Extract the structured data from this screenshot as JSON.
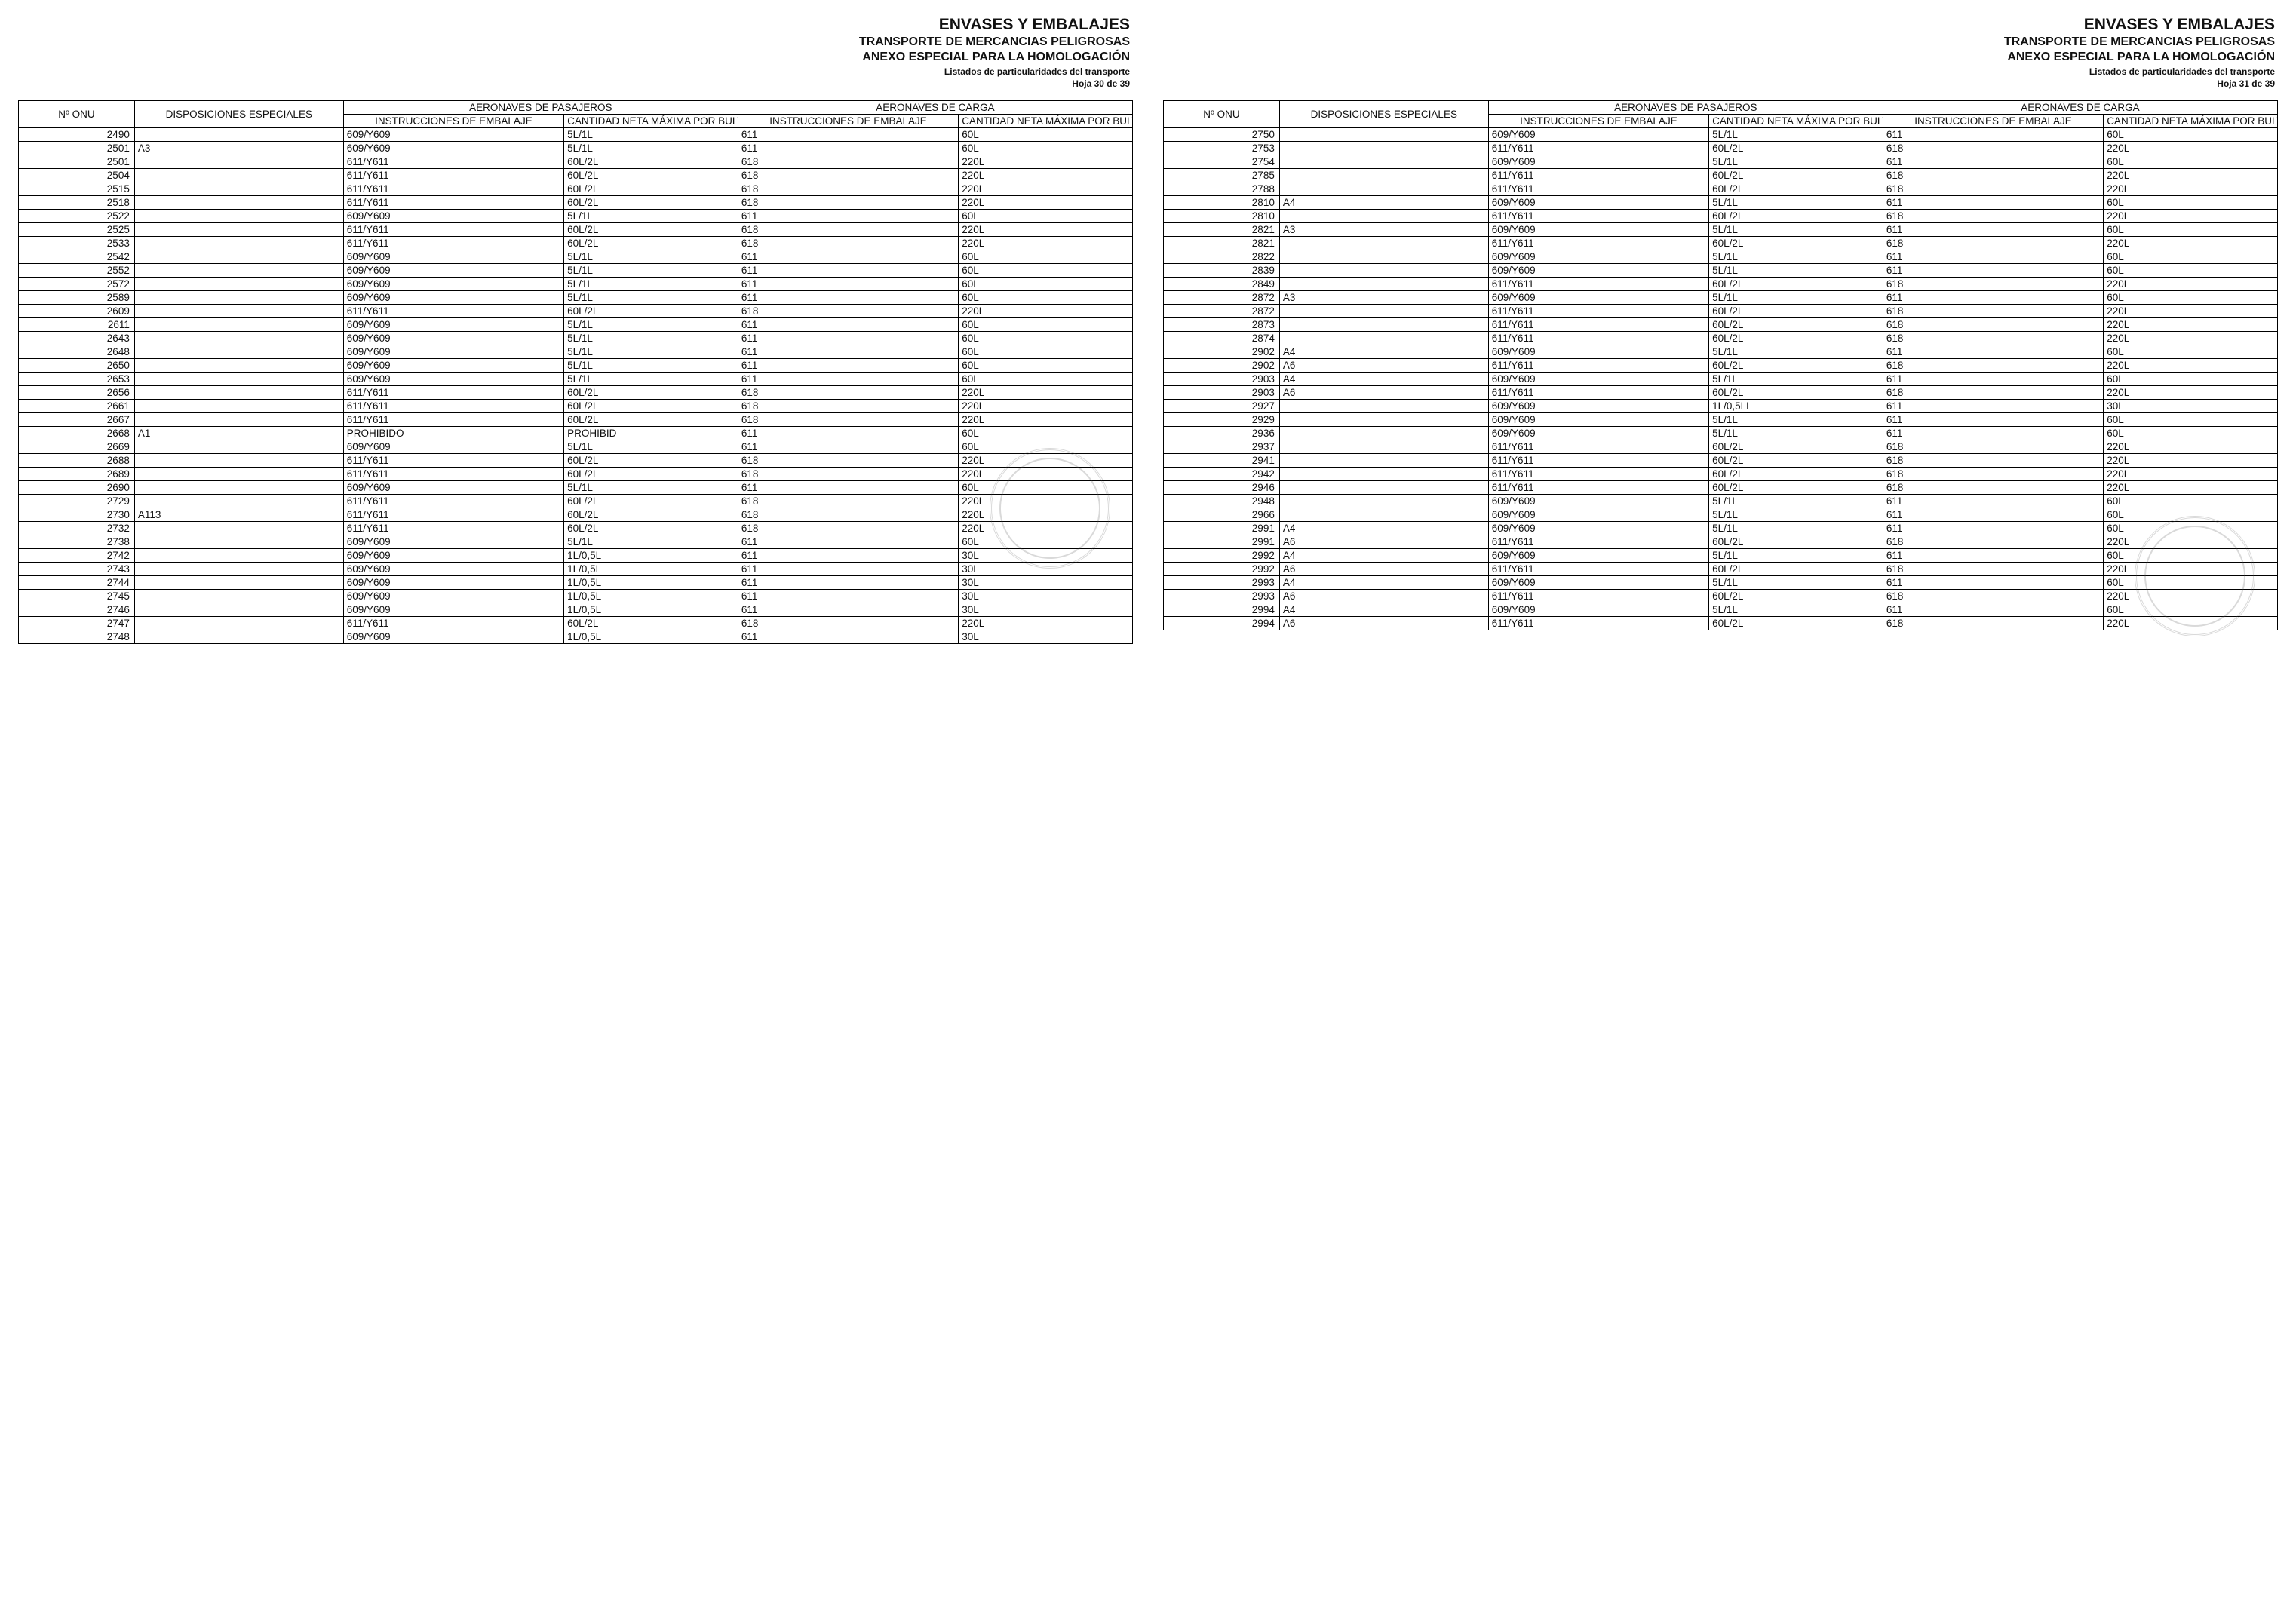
{
  "header": {
    "title": "ENVASES Y EMBALAJES",
    "subtitle1": "TRANSPORTE DE MERCANCIAS PELIGROSAS",
    "subtitle2": "ANEXO ESPECIAL PARA LA HOMOLOGACIÓN",
    "subtitle3": "Listados de particularidades del transporte",
    "page_left": "Hoja 30 de 39",
    "page_right": "Hoja 31 de 39"
  },
  "table_headers": {
    "onu": "Nº ONU",
    "disp": "DISPOSICIONES ESPECIALES",
    "pax_group": "AERONAVES DE PASAJEROS",
    "cargo_group": "AERONAVES DE CARGA",
    "instr": "INSTRUCCIONES DE EMBALAJE",
    "qty": "CANTIDAD NETA MÁXIMA POR BULTO"
  },
  "rows_left": [
    [
      "2490",
      "",
      "609/Y609",
      "5L/1L",
      "611",
      "60L"
    ],
    [
      "2501",
      "A3",
      "609/Y609",
      "5L/1L",
      "611",
      "60L"
    ],
    [
      "2501",
      "",
      "611/Y611",
      "60L/2L",
      "618",
      "220L"
    ],
    [
      "2504",
      "",
      "611/Y611",
      "60L/2L",
      "618",
      "220L"
    ],
    [
      "2515",
      "",
      "611/Y611",
      "60L/2L",
      "618",
      "220L"
    ],
    [
      "2518",
      "",
      "611/Y611",
      "60L/2L",
      "618",
      "220L"
    ],
    [
      "2522",
      "",
      "609/Y609",
      "5L/1L",
      "611",
      "60L"
    ],
    [
      "2525",
      "",
      "611/Y611",
      "60L/2L",
      "618",
      "220L"
    ],
    [
      "2533",
      "",
      "611/Y611",
      "60L/2L",
      "618",
      "220L"
    ],
    [
      "2542",
      "",
      "609/Y609",
      "5L/1L",
      "611",
      "60L"
    ],
    [
      "2552",
      "",
      "609/Y609",
      "5L/1L",
      "611",
      "60L"
    ],
    [
      "2572",
      "",
      "609/Y609",
      "5L/1L",
      "611",
      "60L"
    ],
    [
      "2589",
      "",
      "609/Y609",
      "5L/1L",
      "611",
      "60L"
    ],
    [
      "2609",
      "",
      "611/Y611",
      "60L/2L",
      "618",
      "220L"
    ],
    [
      "2611",
      "",
      "609/Y609",
      "5L/1L",
      "611",
      "60L"
    ],
    [
      "2643",
      "",
      "609/Y609",
      "5L/1L",
      "611",
      "60L"
    ],
    [
      "2648",
      "",
      "609/Y609",
      "5L/1L",
      "611",
      "60L"
    ],
    [
      "2650",
      "",
      "609/Y609",
      "5L/1L",
      "611",
      "60L"
    ],
    [
      "2653",
      "",
      "609/Y609",
      "5L/1L",
      "611",
      "60L"
    ],
    [
      "2656",
      "",
      "611/Y611",
      "60L/2L",
      "618",
      "220L"
    ],
    [
      "2661",
      "",
      "611/Y611",
      "60L/2L",
      "618",
      "220L"
    ],
    [
      "2667",
      "",
      "611/Y611",
      "60L/2L",
      "618",
      "220L"
    ],
    [
      "2668",
      "A1",
      "PROHIBIDO",
      "PROHIBID",
      "611",
      "60L"
    ],
    [
      "2669",
      "",
      "609/Y609",
      "5L/1L",
      "611",
      "60L"
    ],
    [
      "2688",
      "",
      "611/Y611",
      "60L/2L",
      "618",
      "220L"
    ],
    [
      "2689",
      "",
      "611/Y611",
      "60L/2L",
      "618",
      "220L"
    ],
    [
      "2690",
      "",
      "609/Y609",
      "5L/1L",
      "611",
      "60L"
    ],
    [
      "2729",
      "",
      "611/Y611",
      "60L/2L",
      "618",
      "220L"
    ],
    [
      "2730",
      "A113",
      "611/Y611",
      "60L/2L",
      "618",
      "220L"
    ],
    [
      "2732",
      "",
      "611/Y611",
      "60L/2L",
      "618",
      "220L"
    ],
    [
      "2738",
      "",
      "609/Y609",
      "5L/1L",
      "611",
      "60L"
    ],
    [
      "2742",
      "",
      "609/Y609",
      "1L/0,5L",
      "611",
      "30L"
    ],
    [
      "2743",
      "",
      "609/Y609",
      "1L/0,5L",
      "611",
      "30L"
    ],
    [
      "2744",
      "",
      "609/Y609",
      "1L/0,5L",
      "611",
      "30L"
    ],
    [
      "2745",
      "",
      "609/Y609",
      "1L/0,5L",
      "611",
      "30L"
    ],
    [
      "2746",
      "",
      "609/Y609",
      "1L/0,5L",
      "611",
      "30L"
    ],
    [
      "2747",
      "",
      "611/Y611",
      "60L/2L",
      "618",
      "220L"
    ],
    [
      "2748",
      "",
      "609/Y609",
      "1L/0,5L",
      "611",
      "30L"
    ]
  ],
  "rows_right": [
    [
      "2750",
      "",
      "609/Y609",
      "5L/1L",
      "611",
      "60L"
    ],
    [
      "2753",
      "",
      "611/Y611",
      "60L/2L",
      "618",
      "220L"
    ],
    [
      "2754",
      "",
      "609/Y609",
      "5L/1L",
      "611",
      "60L"
    ],
    [
      "2785",
      "",
      "611/Y611",
      "60L/2L",
      "618",
      "220L"
    ],
    [
      "2788",
      "",
      "611/Y611",
      "60L/2L",
      "618",
      "220L"
    ],
    [
      "2810",
      "A4",
      "609/Y609",
      "5L/1L",
      "611",
      "60L"
    ],
    [
      "2810",
      "",
      "611/Y611",
      "60L/2L",
      "618",
      "220L"
    ],
    [
      "2821",
      "A3",
      "609/Y609",
      "5L/1L",
      "611",
      "60L"
    ],
    [
      "2821",
      "",
      "611/Y611",
      "60L/2L",
      "618",
      "220L"
    ],
    [
      "2822",
      "",
      "609/Y609",
      "5L/1L",
      "611",
      "60L"
    ],
    [
      "2839",
      "",
      "609/Y609",
      "5L/1L",
      "611",
      "60L"
    ],
    [
      "2849",
      "",
      "611/Y611",
      "60L/2L",
      "618",
      "220L"
    ],
    [
      "2872",
      "A3",
      "609/Y609",
      "5L/1L",
      "611",
      "60L"
    ],
    [
      "2872",
      "",
      "611/Y611",
      "60L/2L",
      "618",
      "220L"
    ],
    [
      "2873",
      "",
      "611/Y611",
      "60L/2L",
      "618",
      "220L"
    ],
    [
      "2874",
      "",
      "611/Y611",
      "60L/2L",
      "618",
      "220L"
    ],
    [
      "2902",
      "A4",
      "609/Y609",
      "5L/1L",
      "611",
      "60L"
    ],
    [
      "2902",
      "A6",
      "611/Y611",
      "60L/2L",
      "618",
      "220L"
    ],
    [
      "2903",
      "A4",
      "609/Y609",
      "5L/1L",
      "611",
      "60L"
    ],
    [
      "2903",
      "A6",
      "611/Y611",
      "60L/2L",
      "618",
      "220L"
    ],
    [
      "2927",
      "",
      "609/Y609",
      "1L/0,5LL",
      "611",
      "30L"
    ],
    [
      "2929",
      "",
      "609/Y609",
      "5L/1L",
      "611",
      "60L"
    ],
    [
      "2936",
      "",
      "609/Y609",
      "5L/1L",
      "611",
      "60L"
    ],
    [
      "2937",
      "",
      "611/Y611",
      "60L/2L",
      "618",
      "220L"
    ],
    [
      "2941",
      "",
      "611/Y611",
      "60L/2L",
      "618",
      "220L"
    ],
    [
      "2942",
      "",
      "611/Y611",
      "60L/2L",
      "618",
      "220L"
    ],
    [
      "2946",
      "",
      "611/Y611",
      "60L/2L",
      "618",
      "220L"
    ],
    [
      "2948",
      "",
      "609/Y609",
      "5L/1L",
      "611",
      "60L"
    ],
    [
      "2966",
      "",
      "609/Y609",
      "5L/1L",
      "611",
      "60L"
    ],
    [
      "2991",
      "A4",
      "609/Y609",
      "5L/1L",
      "611",
      "60L"
    ],
    [
      "2991",
      "A6",
      "611/Y611",
      "60L/2L",
      "618",
      "220L"
    ],
    [
      "2992",
      "A4",
      "609/Y609",
      "5L/1L",
      "611",
      "60L"
    ],
    [
      "2992",
      "A6",
      "611/Y611",
      "60L/2L",
      "618",
      "220L"
    ],
    [
      "2993",
      "A4",
      "609/Y609",
      "5L/1L",
      "611",
      "60L"
    ],
    [
      "2993",
      "A6",
      "611/Y611",
      "60L/2L",
      "618",
      "220L"
    ],
    [
      "2994",
      "A4",
      "609/Y609",
      "5L/1L",
      "611",
      "60L"
    ],
    [
      "2994",
      "A6",
      "611/Y611",
      "60L/2L",
      "618",
      "220L"
    ]
  ]
}
